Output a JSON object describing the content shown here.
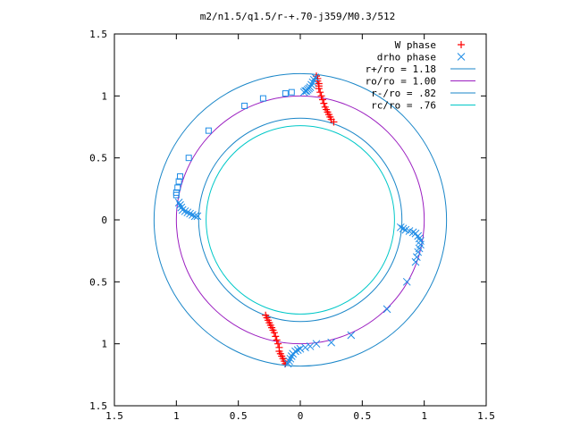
{
  "chart_data": {
    "type": "scatter",
    "title": "m2/n1.5/q1.5/r-+.70-j359/M0.3/512",
    "xlim": [
      -1.5,
      1.5
    ],
    "ylim": [
      -1.5,
      1.5
    ],
    "x_ticks": [
      {
        "value": -1.5,
        "label": "1.5"
      },
      {
        "value": -1,
        "label": "1"
      },
      {
        "value": -0.5,
        "label": "0.5"
      },
      {
        "value": 0,
        "label": "0"
      },
      {
        "value": 0.5,
        "label": "0.5"
      },
      {
        "value": 1,
        "label": "1"
      },
      {
        "value": 1.5,
        "label": "1.5"
      }
    ],
    "y_ticks": [
      {
        "value": 1.5,
        "label": "1.5"
      },
      {
        "value": 1,
        "label": "1"
      },
      {
        "value": 0.5,
        "label": "0.5"
      },
      {
        "value": 0,
        "label": "0"
      },
      {
        "value": -0.5,
        "label": "0.5"
      },
      {
        "value": -1,
        "label": "1"
      },
      {
        "value": -1.5,
        "label": "1.5"
      }
    ],
    "grid": false,
    "legend_position": "top-right",
    "circles": [
      {
        "name": "r+/ro = 1.18",
        "radius": 1.18,
        "color": "#1a86c8"
      },
      {
        "name": "ro/ro = 1.00",
        "radius": 1.0,
        "color": "#9b1ec0"
      },
      {
        "name": "r-/ro = .82",
        "radius": 0.82,
        "color": "#1a86c8"
      },
      {
        "name": "rc/ro = .76",
        "radius": 0.76,
        "color": "#00c8c8"
      }
    ],
    "series": [
      {
        "name": "W phase",
        "marker": "plus",
        "color": "#ff0000",
        "points": [
          [
            0.13,
            1.16
          ],
          [
            0.14,
            1.14
          ],
          [
            0.14,
            1.12
          ],
          [
            0.15,
            1.1
          ],
          [
            0.15,
            1.08
          ],
          [
            0.15,
            1.06
          ],
          [
            0.16,
            1.03
          ],
          [
            0.17,
            1.0
          ],
          [
            0.18,
            0.97
          ],
          [
            0.19,
            0.94
          ],
          [
            0.2,
            0.91
          ],
          [
            0.21,
            0.89
          ],
          [
            0.22,
            0.87
          ],
          [
            0.23,
            0.85
          ],
          [
            0.24,
            0.83
          ],
          [
            0.25,
            0.81
          ],
          [
            0.27,
            0.79
          ],
          [
            -0.12,
            -1.16
          ],
          [
            -0.13,
            -1.14
          ],
          [
            -0.14,
            -1.12
          ],
          [
            -0.15,
            -1.1
          ],
          [
            -0.16,
            -1.08
          ],
          [
            -0.17,
            -1.06
          ],
          [
            -0.17,
            -1.03
          ],
          [
            -0.18,
            -1.0
          ],
          [
            -0.19,
            -0.97
          ],
          [
            -0.2,
            -0.94
          ],
          [
            -0.21,
            -0.91
          ],
          [
            -0.22,
            -0.89
          ],
          [
            -0.23,
            -0.87
          ],
          [
            -0.24,
            -0.85
          ],
          [
            -0.25,
            -0.83
          ],
          [
            -0.26,
            -0.81
          ],
          [
            -0.27,
            -0.79
          ],
          [
            -0.28,
            -0.77
          ]
        ]
      },
      {
        "name": "drho phase",
        "marker": "cross",
        "color": "#1e8ce6",
        "points": [
          [
            0.12,
            1.15
          ],
          [
            0.11,
            1.13
          ],
          [
            0.1,
            1.11
          ],
          [
            0.09,
            1.09
          ],
          [
            0.08,
            1.07
          ],
          [
            0.07,
            1.06
          ],
          [
            0.06,
            1.05
          ],
          [
            0.05,
            1.04
          ],
          [
            0.04,
            1.04
          ],
          [
            0.03,
            1.03
          ],
          [
            -0.98,
            0.14
          ],
          [
            -0.97,
            0.12
          ],
          [
            -0.96,
            0.1
          ],
          [
            -0.95,
            0.08
          ],
          [
            -0.93,
            0.07
          ],
          [
            -0.91,
            0.06
          ],
          [
            -0.89,
            0.05
          ],
          [
            -0.87,
            0.04
          ],
          [
            -0.85,
            0.03
          ],
          [
            -0.83,
            0.03
          ],
          [
            0.81,
            -0.06
          ],
          [
            0.83,
            -0.07
          ],
          [
            0.85,
            -0.08
          ],
          [
            0.88,
            -0.09
          ],
          [
            0.91,
            -0.1
          ],
          [
            0.93,
            -0.11
          ],
          [
            0.95,
            -0.13
          ],
          [
            0.96,
            -0.15
          ],
          [
            0.97,
            -0.17
          ],
          [
            0.97,
            -0.2
          ],
          [
            0.96,
            -0.23
          ],
          [
            0.95,
            -0.26
          ],
          [
            0.94,
            -0.3
          ],
          [
            0.93,
            -0.34
          ],
          [
            0.86,
            -0.5
          ],
          [
            0.7,
            -0.72
          ],
          [
            -0.1,
            -1.16
          ],
          [
            -0.09,
            -1.14
          ],
          [
            -0.08,
            -1.12
          ],
          [
            -0.07,
            -1.1
          ],
          [
            -0.06,
            -1.08
          ],
          [
            -0.04,
            -1.06
          ],
          [
            -0.02,
            -1.05
          ],
          [
            0.0,
            -1.04
          ],
          [
            0.04,
            -1.03
          ],
          [
            0.08,
            -1.02
          ],
          [
            0.13,
            -1.0
          ],
          [
            0.25,
            -0.99
          ],
          [
            0.41,
            -0.93
          ]
        ]
      },
      {
        "name": "",
        "marker": "square",
        "color": "#1e8ce6",
        "points": [
          [
            -0.07,
            1.03
          ],
          [
            -0.12,
            1.02
          ],
          [
            -0.3,
            0.98
          ],
          [
            -0.45,
            0.92
          ],
          [
            -0.74,
            0.72
          ],
          [
            -0.9,
            0.5
          ],
          [
            -0.97,
            0.35
          ],
          [
            -0.98,
            0.31
          ],
          [
            -0.99,
            0.26
          ],
          [
            -1.0,
            0.22
          ],
          [
            -1.0,
            0.2
          ]
        ]
      }
    ]
  }
}
